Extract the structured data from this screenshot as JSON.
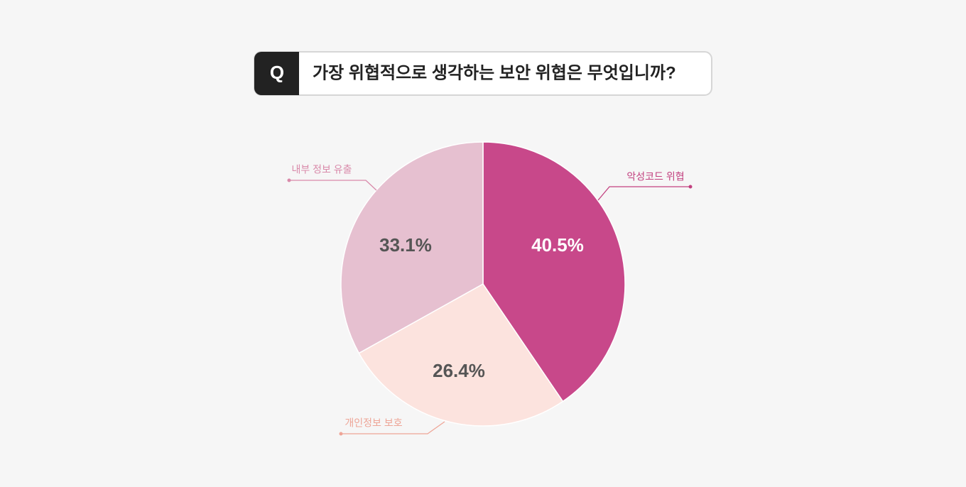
{
  "badge": "Q",
  "chart_data": {
    "type": "pie",
    "title": "가장 위협적으로 생각하는 보안 위협은 무엇입니까?",
    "categories": [
      "악성코드 위협",
      "개인정보 보호",
      "내부 정보 유출"
    ],
    "values": [
      40.5,
      26.4,
      33.1
    ],
    "value_labels": [
      "40.5%",
      "26.4%",
      "33.1%"
    ],
    "colors": [
      "#c8488a",
      "#fce3de",
      "#e6c0d0"
    ],
    "label_colors": [
      "#c2407f",
      "#eea597",
      "#d98aaa"
    ],
    "value_label_colors": [
      "#ffffff",
      "#555555",
      "#555555"
    ]
  }
}
